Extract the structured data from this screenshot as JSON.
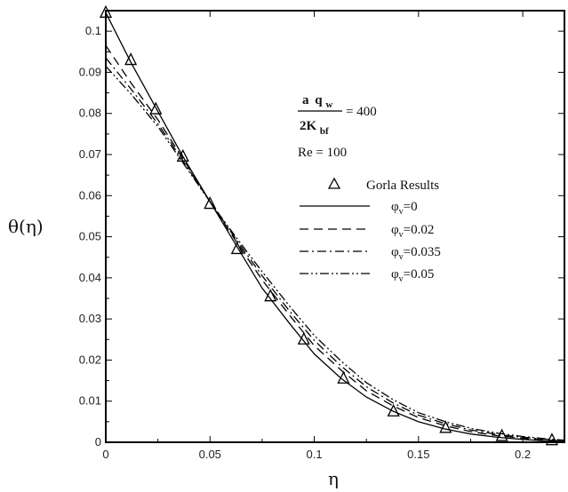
{
  "chart_data": {
    "type": "line",
    "xlabel": "η",
    "ylabel": "θ(η)",
    "xlim": [
      0,
      0.22
    ],
    "ylim": [
      0,
      0.105
    ],
    "xticks": [
      0,
      0.05,
      0.1,
      0.15,
      0.2
    ],
    "xtick_labels": [
      "0",
      "0.05",
      "0.1",
      "0.15",
      "0.2"
    ],
    "yticks": [
      0,
      0.01,
      0.02,
      0.03,
      0.04,
      0.05,
      0.06,
      0.07,
      0.08,
      0.09,
      0.1
    ],
    "ytick_labels": [
      "0",
      "0.01",
      "0.02",
      "0.03",
      "0.04",
      "0.05",
      "0.06",
      "0.07",
      "0.08",
      "0.09",
      "0.1"
    ],
    "grid": false,
    "legend_position": "right",
    "annotations": {
      "frac_num_a": "a",
      "frac_num_q": "q",
      "frac_num_sub": "w",
      "frac_den_main": "2K",
      "frac_den_sub": "bf",
      "frac_value": "= 400",
      "re": "Re = 100"
    },
    "series": [
      {
        "name": "Gorla Results",
        "style": "triangle-markers",
        "x": [
          0,
          0.012,
          0.024,
          0.037,
          0.05,
          0.063,
          0.079,
          0.095,
          0.114,
          0.138,
          0.163,
          0.19,
          0.214
        ],
        "y": [
          0.1045,
          0.093,
          0.081,
          0.0695,
          0.058,
          0.047,
          0.0355,
          0.025,
          0.0155,
          0.0075,
          0.0035,
          0.0015,
          0.0005
        ]
      },
      {
        "name": "φv=0",
        "label_main": "φ",
        "label_sub": "v",
        "label_rest": "=0",
        "style": "solid",
        "x": [
          0,
          0.012,
          0.025,
          0.037,
          0.05,
          0.063,
          0.075,
          0.088,
          0.1,
          0.113,
          0.125,
          0.138,
          0.15,
          0.163,
          0.175,
          0.188,
          0.2,
          0.212,
          0.22
        ],
        "y": [
          0.1045,
          0.0925,
          0.0805,
          0.0695,
          0.0585,
          0.0475,
          0.0375,
          0.029,
          0.0215,
          0.0155,
          0.011,
          0.0075,
          0.005,
          0.0032,
          0.002,
          0.0012,
          0.0007,
          0.0003,
          0.0002
        ]
      },
      {
        "name": "φv=0.02",
        "label_main": "φ",
        "label_sub": "v",
        "label_rest": "=0.02",
        "style": "dashed",
        "x": [
          0,
          0.012,
          0.025,
          0.037,
          0.05,
          0.063,
          0.075,
          0.088,
          0.1,
          0.113,
          0.125,
          0.138,
          0.15,
          0.163,
          0.175,
          0.188,
          0.2,
          0.212,
          0.22
        ],
        "y": [
          0.0965,
          0.0875,
          0.0785,
          0.069,
          0.0585,
          0.0485,
          0.0395,
          0.031,
          0.0235,
          0.0175,
          0.0125,
          0.0088,
          0.006,
          0.004,
          0.0026,
          0.0016,
          0.001,
          0.0005,
          0.0003
        ]
      },
      {
        "name": "φv=0.035",
        "label_main": "φ",
        "label_sub": "v",
        "label_rest": "=0.035",
        "style": "dash-dot",
        "x": [
          0,
          0.012,
          0.025,
          0.037,
          0.05,
          0.063,
          0.075,
          0.088,
          0.1,
          0.113,
          0.125,
          0.138,
          0.15,
          0.163,
          0.175,
          0.188,
          0.2,
          0.212,
          0.22
        ],
        "y": [
          0.0935,
          0.086,
          0.0775,
          0.0685,
          0.0585,
          0.049,
          0.0405,
          0.032,
          0.0248,
          0.0185,
          0.0135,
          0.0095,
          0.0066,
          0.0045,
          0.003,
          0.0019,
          0.0012,
          0.0007,
          0.0004
        ]
      },
      {
        "name": "φv=0.05",
        "label_main": "φ",
        "label_sub": "v",
        "label_rest": "=0.05",
        "style": "dash-dot-dot",
        "x": [
          0,
          0.012,
          0.025,
          0.037,
          0.05,
          0.063,
          0.075,
          0.088,
          0.1,
          0.113,
          0.125,
          0.138,
          0.15,
          0.163,
          0.175,
          0.188,
          0.2,
          0.212,
          0.22
        ],
        "y": [
          0.0915,
          0.0848,
          0.0768,
          0.068,
          0.0585,
          0.0495,
          0.0415,
          0.0332,
          0.026,
          0.0197,
          0.0145,
          0.0103,
          0.0072,
          0.005,
          0.0034,
          0.0022,
          0.0014,
          0.0008,
          0.0005
        ]
      }
    ]
  }
}
